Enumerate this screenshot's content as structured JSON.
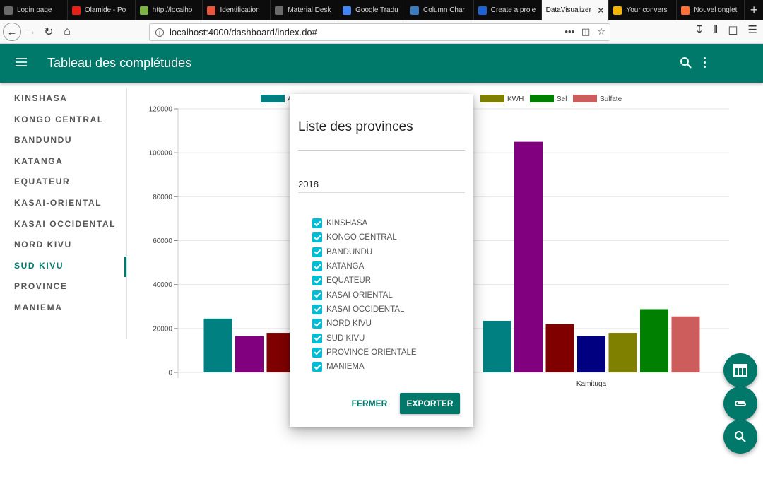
{
  "browser": {
    "tabs": [
      {
        "label": "Login page",
        "fav": "#6a6a6a"
      },
      {
        "label": "Olamide - Po",
        "fav": "#e62117"
      },
      {
        "label": "http://localho",
        "fav": "#7cb342"
      },
      {
        "label": "Identification",
        "fav": "#e9573f"
      },
      {
        "label": "Material Desk",
        "fav": "#6a6a6a"
      },
      {
        "label": "Google Tradu",
        "fav": "#4285f4"
      },
      {
        "label": "Column Char",
        "fav": "#3b7bbf"
      },
      {
        "label": "Create a proje",
        "fav": "#1e63d6"
      },
      {
        "label": "DataVisualizer",
        "fav": "#f9f9fa"
      },
      {
        "label": "Your convers",
        "fav": "#f4b400"
      },
      {
        "label": "Nouvel onglet",
        "fav": "#ff7139"
      }
    ],
    "active_tab_index": 8,
    "url": "localhost:4000/dashboard/index.do#"
  },
  "app": {
    "title": "Tableau des complétudes"
  },
  "sidebar": {
    "items": [
      "KINSHASA",
      "KONGO CENTRAL",
      "BANDUNDU",
      "KATANGA",
      "EQUATEUR",
      "KASAI-ORIENTAL",
      "KASAI OCCIDENTAL",
      "NORD KIVU",
      "SUD KIVU",
      "PROVINCE",
      "MANIEMA"
    ],
    "active": "SUD KIVU"
  },
  "dialog": {
    "title": "Liste des provinces",
    "year": "2018",
    "provinces": [
      "KINSHASA",
      "KONGO CENTRAL",
      "BANDUNDU",
      "KATANGA",
      "EQUATEUR",
      "KASAI ORIENTAL",
      "KASAI OCCIDENTAL",
      "NORD KIVU",
      "SUD KIVU",
      "PROVINCE ORIENTALE",
      "MANIEMA"
    ],
    "close_label": "FERMER",
    "export_label": "EXPORTER"
  },
  "chart_data": {
    "type": "bar",
    "title": "",
    "ylim": [
      0,
      120000
    ],
    "yticks": [
      0,
      20000,
      40000,
      60000,
      80000,
      100000,
      120000
    ],
    "legend_visible": [
      {
        "name": "A",
        "color": "#008080"
      },
      {
        "name": "KWH",
        "color": "#808000"
      },
      {
        "name": "Sel",
        "color": "#008000"
      },
      {
        "name": "Sulfate",
        "color": "#cd5c5c"
      }
    ],
    "categories": [
      "",
      "Kamituga"
    ],
    "groups": [
      {
        "category": "",
        "bars": [
          {
            "color": "#008080",
            "value": 24500
          },
          {
            "color": "#800080",
            "value": 16500
          },
          {
            "color": "#800000",
            "value": 18000
          }
        ]
      },
      {
        "category": "Kamituga",
        "bars": [
          {
            "color": "#008080",
            "value": 23500
          },
          {
            "color": "#800080",
            "value": 105000
          },
          {
            "color": "#800000",
            "value": 22000
          },
          {
            "color": "#000080",
            "value": 16500
          },
          {
            "color": "#808000",
            "value": 18000
          },
          {
            "color": "#008000",
            "value": 28800
          },
          {
            "color": "#cd5c5c",
            "value": 25500
          }
        ]
      }
    ]
  }
}
